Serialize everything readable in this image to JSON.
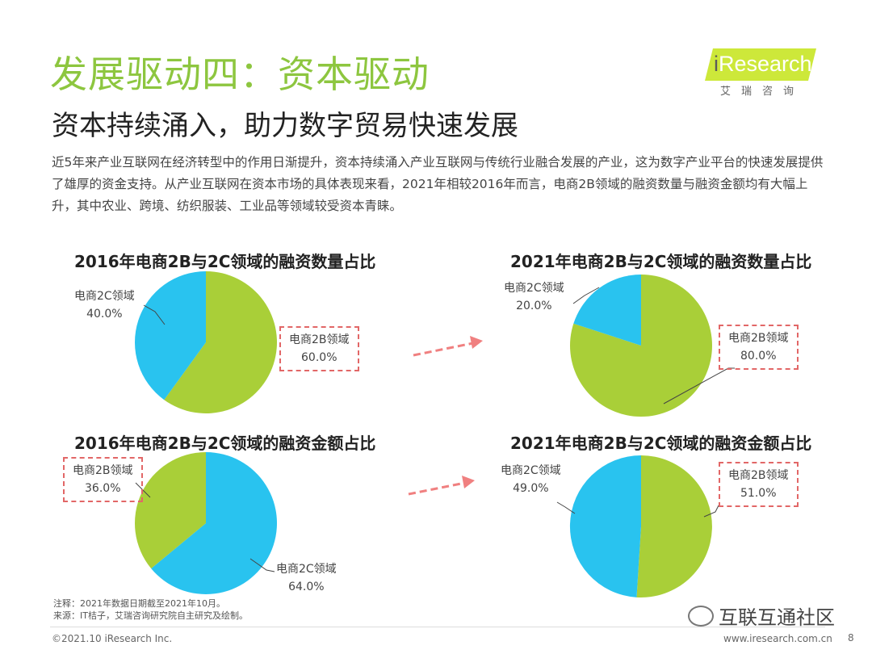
{
  "header": {
    "title": "发展驱动四：资本驱动",
    "subtitle": "资本持续涌入，助力数字贸易快速发展",
    "intro": "近5年来产业互联网在经济转型中的作用日渐提升，资本持续涌入产业互联网与传统行业融合发展的产业，这为数字产业平台的快速发展提供了雄厚的资金支持。从产业互联网在资本市场的具体表现来看，2021年相较2016年而言，电商2B领域的融资数量与融资金额均有大幅上升，其中农业、跨境、纺织服装、工业品等领域较受资本青睐。"
  },
  "logo": {
    "brand_i": "i",
    "brand_rest": "Research",
    "cn": "艾瑞咨询"
  },
  "colors": {
    "green": "#a9cf38",
    "blue": "#29c3ef",
    "title_green": "#8dc63f",
    "arrow": "#f08080"
  },
  "chart_data": [
    {
      "type": "pie",
      "title": "2016年电商2B与2C领域的融资数量占比",
      "slices": [
        {
          "name": "电商2B领域",
          "value": 60.0,
          "label": "60.0%"
        },
        {
          "name": "电商2C领域",
          "value": 40.0,
          "label": "40.0%"
        }
      ]
    },
    {
      "type": "pie",
      "title": "2021年电商2B与2C领域的融资数量占比",
      "slices": [
        {
          "name": "电商2B领域",
          "value": 80.0,
          "label": "80.0%"
        },
        {
          "name": "电商2C领域",
          "value": 20.0,
          "label": "20.0%"
        }
      ]
    },
    {
      "type": "pie",
      "title": "2016年电商2B与2C领域的融资金额占比",
      "slices": [
        {
          "name": "电商2C领域",
          "value": 64.0,
          "label": "64.0%"
        },
        {
          "name": "电商2B领域",
          "value": 36.0,
          "label": "36.0%"
        }
      ]
    },
    {
      "type": "pie",
      "title": "2021年电商2B与2C领域的融资金额占比",
      "slices": [
        {
          "name": "电商2B领域",
          "value": 51.0,
          "label": "51.0%"
        },
        {
          "name": "电商2C领域",
          "value": 49.0,
          "label": "49.0%"
        }
      ]
    }
  ],
  "footer": {
    "note": "注释：2021年数据日期截至2021年10月。",
    "source": "来源：IT桔子，艾瑞咨询研究院自主研究及绘制。",
    "copyright": "©2021.10 iResearch Inc.",
    "website": "www.iresearch.com.cn",
    "page": "8",
    "watermark": "互联互通社区"
  }
}
